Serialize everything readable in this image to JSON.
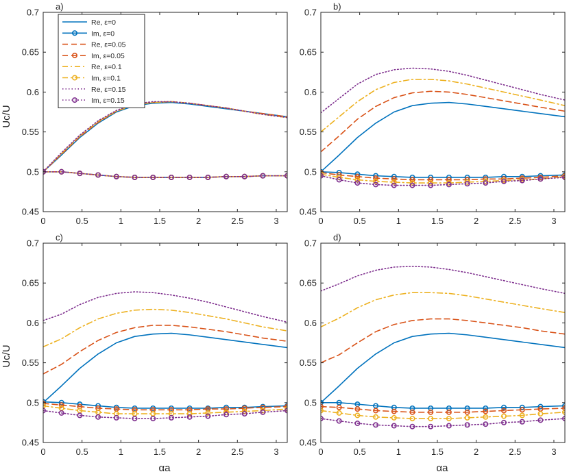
{
  "figure": {
    "ylabel": "Uc/U",
    "xlabel": "αa"
  },
  "legend": {
    "placement": "top-left of panel a",
    "entries": [
      {
        "label": "Re, ε=0",
        "color": "#0072BD",
        "style": "solid",
        "marker": "none"
      },
      {
        "label": "Im, ε=0",
        "color": "#0072BD",
        "style": "solid",
        "marker": "circle"
      },
      {
        "label": "Re, ε=0.05",
        "color": "#D95319",
        "style": "dashed",
        "marker": "none"
      },
      {
        "label": "Im, ε=0.05",
        "color": "#D95319",
        "style": "dashed",
        "marker": "circle"
      },
      {
        "label": "Re, ε=0.1",
        "color": "#EDB120",
        "style": "dashdot",
        "marker": "none"
      },
      {
        "label": "Im, ε=0.1",
        "color": "#EDB120",
        "style": "dashdot",
        "marker": "circle"
      },
      {
        "label": "Re, ε=0.15",
        "color": "#7E2F8E",
        "style": "dotted",
        "marker": "none"
      },
      {
        "label": "Im, ε=0.15",
        "color": "#7E2F8E",
        "style": "dotted",
        "marker": "circle"
      }
    ]
  },
  "chart_data": [
    {
      "type": "line",
      "panel_label": "a)",
      "xlim": [
        0,
        3.14159
      ],
      "ylim": [
        0.45,
        0.7
      ],
      "xticks": [
        "0",
        "0.5",
        "1",
        "1.5",
        "2",
        "2.5",
        "3"
      ],
      "yticks": [
        "0.45",
        "0.5",
        "0.55",
        "0.6",
        "0.65",
        "0.7"
      ],
      "show_ylabel": true,
      "show_xlabel": false,
      "show_legend": true,
      "x": [
        0,
        0.2356,
        0.4712,
        0.7069,
        0.9425,
        1.1781,
        1.4137,
        1.6493,
        1.885,
        2.1206,
        2.3562,
        2.5918,
        2.8274,
        3.1416
      ],
      "series": [
        {
          "name": "Re, ε=0",
          "values": [
            0.5,
            0.521,
            0.543,
            0.561,
            0.575,
            0.583,
            0.586,
            0.587,
            0.585,
            0.582,
            0.579,
            0.576,
            0.573,
            0.569
          ]
        },
        {
          "name": "Im, ε=0",
          "values": [
            0.5,
            0.5,
            0.498,
            0.496,
            0.494,
            0.493,
            0.493,
            0.493,
            0.493,
            0.493,
            0.494,
            0.494,
            0.495,
            0.495
          ]
        },
        {
          "name": "Re, ε=0.05",
          "values": [
            0.5,
            0.522,
            0.544,
            0.562,
            0.576,
            0.584,
            0.587,
            0.588,
            0.586,
            0.583,
            0.58,
            0.576,
            0.573,
            0.569
          ]
        },
        {
          "name": "Im, ε=0.05",
          "values": [
            0.5,
            0.5,
            0.498,
            0.496,
            0.494,
            0.493,
            0.493,
            0.493,
            0.493,
            0.493,
            0.494,
            0.494,
            0.495,
            0.495
          ]
        },
        {
          "name": "Re, ε=0.1",
          "values": [
            0.5,
            0.523,
            0.545,
            0.563,
            0.576,
            0.584,
            0.587,
            0.588,
            0.586,
            0.583,
            0.58,
            0.576,
            0.572,
            0.568
          ]
        },
        {
          "name": "Im, ε=0.1",
          "values": [
            0.5,
            0.5,
            0.498,
            0.496,
            0.494,
            0.493,
            0.493,
            0.493,
            0.493,
            0.493,
            0.494,
            0.494,
            0.495,
            0.495
          ]
        },
        {
          "name": "Re, ε=0.15",
          "values": [
            0.5,
            0.524,
            0.546,
            0.564,
            0.577,
            0.585,
            0.588,
            0.588,
            0.586,
            0.583,
            0.58,
            0.576,
            0.572,
            0.568
          ]
        },
        {
          "name": "Im, ε=0.15",
          "values": [
            0.5,
            0.5,
            0.498,
            0.496,
            0.494,
            0.493,
            0.493,
            0.493,
            0.493,
            0.493,
            0.494,
            0.494,
            0.495,
            0.495
          ]
        }
      ]
    },
    {
      "type": "line",
      "panel_label": "b)",
      "xlim": [
        0,
        3.14159
      ],
      "ylim": [
        0.45,
        0.7
      ],
      "xticks": [
        "0",
        "0.5",
        "1",
        "1.5",
        "2",
        "2.5",
        "3"
      ],
      "yticks": [
        "0.45",
        "0.5",
        "0.55",
        "0.6",
        "0.65",
        "0.7"
      ],
      "show_ylabel": false,
      "show_xlabel": false,
      "show_legend": false,
      "x": [
        0,
        0.2356,
        0.4712,
        0.7069,
        0.9425,
        1.1781,
        1.4137,
        1.6493,
        1.885,
        2.1206,
        2.3562,
        2.5918,
        2.8274,
        3.1416
      ],
      "series": [
        {
          "name": "Re, ε=0",
          "values": [
            0.5,
            0.521,
            0.543,
            0.561,
            0.575,
            0.583,
            0.586,
            0.587,
            0.585,
            0.582,
            0.579,
            0.576,
            0.573,
            0.569
          ]
        },
        {
          "name": "Im, ε=0",
          "values": [
            0.5,
            0.499,
            0.497,
            0.495,
            0.494,
            0.493,
            0.493,
            0.493,
            0.493,
            0.493,
            0.494,
            0.494,
            0.495,
            0.496
          ]
        },
        {
          "name": "Re, ε=0.05",
          "values": [
            0.525,
            0.545,
            0.566,
            0.582,
            0.593,
            0.599,
            0.601,
            0.6,
            0.597,
            0.593,
            0.589,
            0.585,
            0.581,
            0.576
          ]
        },
        {
          "name": "Im, ε=0.05",
          "values": [
            0.499,
            0.496,
            0.494,
            0.492,
            0.491,
            0.49,
            0.49,
            0.49,
            0.49,
            0.491,
            0.491,
            0.492,
            0.493,
            0.495
          ]
        },
        {
          "name": "Re, ε=0.1",
          "values": [
            0.55,
            0.569,
            0.588,
            0.603,
            0.612,
            0.616,
            0.616,
            0.614,
            0.61,
            0.605,
            0.6,
            0.595,
            0.59,
            0.583
          ]
        },
        {
          "name": "Im, ε=0.1",
          "values": [
            0.497,
            0.493,
            0.49,
            0.488,
            0.487,
            0.486,
            0.486,
            0.486,
            0.487,
            0.488,
            0.489,
            0.49,
            0.491,
            0.494
          ]
        },
        {
          "name": "Re, ε=0.15",
          "values": [
            0.574,
            0.592,
            0.61,
            0.622,
            0.628,
            0.63,
            0.629,
            0.626,
            0.621,
            0.615,
            0.609,
            0.603,
            0.597,
            0.59
          ]
        },
        {
          "name": "Im, ε=0.15",
          "values": [
            0.495,
            0.49,
            0.486,
            0.484,
            0.483,
            0.483,
            0.483,
            0.484,
            0.485,
            0.486,
            0.488,
            0.489,
            0.491,
            0.493
          ]
        }
      ]
    },
    {
      "type": "line",
      "panel_label": "c)",
      "xlim": [
        0,
        3.14159
      ],
      "ylim": [
        0.45,
        0.7
      ],
      "xticks": [
        "0",
        "0.5",
        "1",
        "1.5",
        "2",
        "2.5",
        "3"
      ],
      "yticks": [
        "0.45",
        "0.5",
        "0.55",
        "0.6",
        "0.65",
        "0.7"
      ],
      "show_ylabel": true,
      "show_xlabel": true,
      "show_legend": false,
      "x": [
        0,
        0.2356,
        0.4712,
        0.7069,
        0.9425,
        1.1781,
        1.4137,
        1.6493,
        1.885,
        2.1206,
        2.3562,
        2.5918,
        2.8274,
        3.1416
      ],
      "series": [
        {
          "name": "Re, ε=0",
          "values": [
            0.5,
            0.521,
            0.543,
            0.561,
            0.575,
            0.583,
            0.586,
            0.587,
            0.585,
            0.582,
            0.579,
            0.576,
            0.573,
            0.569
          ]
        },
        {
          "name": "Im, ε=0",
          "values": [
            0.501,
            0.5,
            0.498,
            0.496,
            0.494,
            0.493,
            0.493,
            0.493,
            0.493,
            0.493,
            0.494,
            0.494,
            0.495,
            0.496
          ]
        },
        {
          "name": "Re, ε=0.05",
          "values": [
            0.536,
            0.548,
            0.564,
            0.578,
            0.588,
            0.594,
            0.597,
            0.597,
            0.595,
            0.592,
            0.589,
            0.585,
            0.581,
            0.577
          ]
        },
        {
          "name": "Im, ε=0.05",
          "values": [
            0.499,
            0.497,
            0.495,
            0.493,
            0.492,
            0.491,
            0.491,
            0.491,
            0.491,
            0.492,
            0.492,
            0.493,
            0.494,
            0.495
          ]
        },
        {
          "name": "Re, ε=0.1",
          "values": [
            0.57,
            0.58,
            0.594,
            0.605,
            0.612,
            0.616,
            0.617,
            0.616,
            0.613,
            0.609,
            0.605,
            0.6,
            0.595,
            0.59
          ]
        },
        {
          "name": "Im, ε=0.1",
          "values": [
            0.496,
            0.493,
            0.49,
            0.488,
            0.486,
            0.486,
            0.486,
            0.486,
            0.486,
            0.487,
            0.488,
            0.489,
            0.49,
            0.492
          ]
        },
        {
          "name": "Re, ε=0.15",
          "values": [
            0.603,
            0.611,
            0.623,
            0.632,
            0.637,
            0.639,
            0.638,
            0.635,
            0.631,
            0.626,
            0.62,
            0.614,
            0.608,
            0.601
          ]
        },
        {
          "name": "Im, ε=0.15",
          "values": [
            0.49,
            0.487,
            0.484,
            0.482,
            0.481,
            0.48,
            0.48,
            0.481,
            0.482,
            0.483,
            0.485,
            0.486,
            0.488,
            0.49
          ]
        }
      ]
    },
    {
      "type": "line",
      "panel_label": "d)",
      "xlim": [
        0,
        3.14159
      ],
      "ylim": [
        0.45,
        0.7
      ],
      "xticks": [
        "0",
        "0.5",
        "1",
        "1.5",
        "2",
        "2.5",
        "3"
      ],
      "yticks": [
        "0.45",
        "0.5",
        "0.55",
        "0.6",
        "0.65",
        "0.7"
      ],
      "show_ylabel": false,
      "show_xlabel": true,
      "show_legend": false,
      "x": [
        0,
        0.2356,
        0.4712,
        0.7069,
        0.9425,
        1.1781,
        1.4137,
        1.6493,
        1.885,
        2.1206,
        2.3562,
        2.5918,
        2.8274,
        3.1416
      ],
      "series": [
        {
          "name": "Re, ε=0",
          "values": [
            0.5,
            0.521,
            0.543,
            0.561,
            0.575,
            0.583,
            0.586,
            0.587,
            0.585,
            0.582,
            0.579,
            0.576,
            0.573,
            0.569
          ]
        },
        {
          "name": "Im, ε=0",
          "values": [
            0.5,
            0.5,
            0.498,
            0.496,
            0.494,
            0.493,
            0.493,
            0.493,
            0.493,
            0.493,
            0.494,
            0.494,
            0.495,
            0.496
          ]
        },
        {
          "name": "Re, ε=0.05",
          "values": [
            0.55,
            0.56,
            0.575,
            0.589,
            0.598,
            0.603,
            0.605,
            0.605,
            0.603,
            0.6,
            0.597,
            0.594,
            0.59,
            0.586
          ]
        },
        {
          "name": "Im, ε=0.05",
          "values": [
            0.495,
            0.494,
            0.492,
            0.49,
            0.489,
            0.488,
            0.488,
            0.488,
            0.488,
            0.489,
            0.49,
            0.491,
            0.492,
            0.493
          ]
        },
        {
          "name": "Re, ε=0.1",
          "values": [
            0.595,
            0.606,
            0.619,
            0.629,
            0.635,
            0.638,
            0.638,
            0.637,
            0.634,
            0.63,
            0.626,
            0.622,
            0.618,
            0.613
          ]
        },
        {
          "name": "Im, ε=0.1",
          "values": [
            0.49,
            0.487,
            0.484,
            0.482,
            0.481,
            0.48,
            0.48,
            0.48,
            0.481,
            0.482,
            0.483,
            0.484,
            0.486,
            0.488
          ]
        },
        {
          "name": "Re, ε=0.15",
          "values": [
            0.64,
            0.649,
            0.659,
            0.666,
            0.67,
            0.671,
            0.67,
            0.667,
            0.663,
            0.658,
            0.653,
            0.648,
            0.643,
            0.637
          ]
        },
        {
          "name": "Im, ε=0.15",
          "values": [
            0.48,
            0.477,
            0.474,
            0.472,
            0.471,
            0.47,
            0.47,
            0.471,
            0.472,
            0.473,
            0.475,
            0.476,
            0.478,
            0.48
          ]
        }
      ]
    }
  ]
}
